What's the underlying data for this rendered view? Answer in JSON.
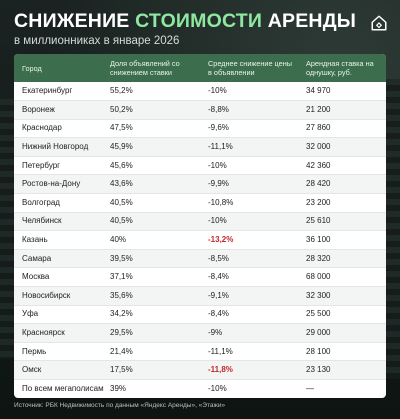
{
  "header": {
    "title_part1": "СНИЖЕНИЕ",
    "title_part2": "СТОИМОСТИ",
    "title_part3": "АРЕНДЫ",
    "subtitle": "в миллионниках в январе 2026"
  },
  "colors": {
    "accent_green": "#8ee8a0",
    "header_row": "#3c6e4e",
    "highlight_red": "#c0282c"
  },
  "logo_icon": "house-icon",
  "table": {
    "headers": [
      "Город",
      "Доля объявлений со снижением ставки",
      "Среднее снижение цены в объявлении",
      "Арендная ставка на однушку, руб."
    ],
    "rows": [
      {
        "city": "Екатеринбург",
        "share": "55,2%",
        "drop": "-10%",
        "rent": "34 970",
        "highlight": false
      },
      {
        "city": "Воронеж",
        "share": "50,2%",
        "drop": "-8,8%",
        "rent": "21 200",
        "highlight": false
      },
      {
        "city": "Краснодар",
        "share": "47,5%",
        "drop": "-9,6%",
        "rent": "27 860",
        "highlight": false
      },
      {
        "city": "Нижний Новгород",
        "share": "45,9%",
        "drop": "-11,1%",
        "rent": "32 000",
        "highlight": false
      },
      {
        "city": "Петербург",
        "share": "45,6%",
        "drop": "-10%",
        "rent": "42 360",
        "highlight": false
      },
      {
        "city": "Ростов-на-Дону",
        "share": "43,6%",
        "drop": "-9,9%",
        "rent": "28 420",
        "highlight": false
      },
      {
        "city": "Волгоград",
        "share": "40,5%",
        "drop": "-10,8%",
        "rent": "23 200",
        "highlight": false
      },
      {
        "city": "Челябинск",
        "share": "40,5%",
        "drop": "-10%",
        "rent": "25 610",
        "highlight": false
      },
      {
        "city": "Казань",
        "share": "40%",
        "drop": "-13,2%",
        "rent": "36 100",
        "highlight": true
      },
      {
        "city": "Самара",
        "share": "39,5%",
        "drop": "-8,5%",
        "rent": "28 320",
        "highlight": false
      },
      {
        "city": "Москва",
        "share": "37,1%",
        "drop": "-8,4%",
        "rent": "68 000",
        "highlight": false
      },
      {
        "city": "Новосибирск",
        "share": "35,6%",
        "drop": "-9,1%",
        "rent": "32 300",
        "highlight": false
      },
      {
        "city": "Уфа",
        "share": "34,2%",
        "drop": "-8,4%",
        "rent": "25 500",
        "highlight": false
      },
      {
        "city": "Красноярск",
        "share": "29,5%",
        "drop": "-9%",
        "rent": "29 000",
        "highlight": false
      },
      {
        "city": "Пермь",
        "share": "21,4%",
        "drop": "-11,1%",
        "rent": "28 100",
        "highlight": false
      },
      {
        "city": "Омск",
        "share": "17,5%",
        "drop": "-11,8%",
        "rent": "23 130",
        "highlight": true
      },
      {
        "city": "По всем мегаполисам",
        "share": "39%",
        "drop": "-10%",
        "rent": "—",
        "highlight": false
      }
    ]
  },
  "source": "Источник: РБК Недвижимость по данным «Яндекс Аренды», «Этажи»"
}
